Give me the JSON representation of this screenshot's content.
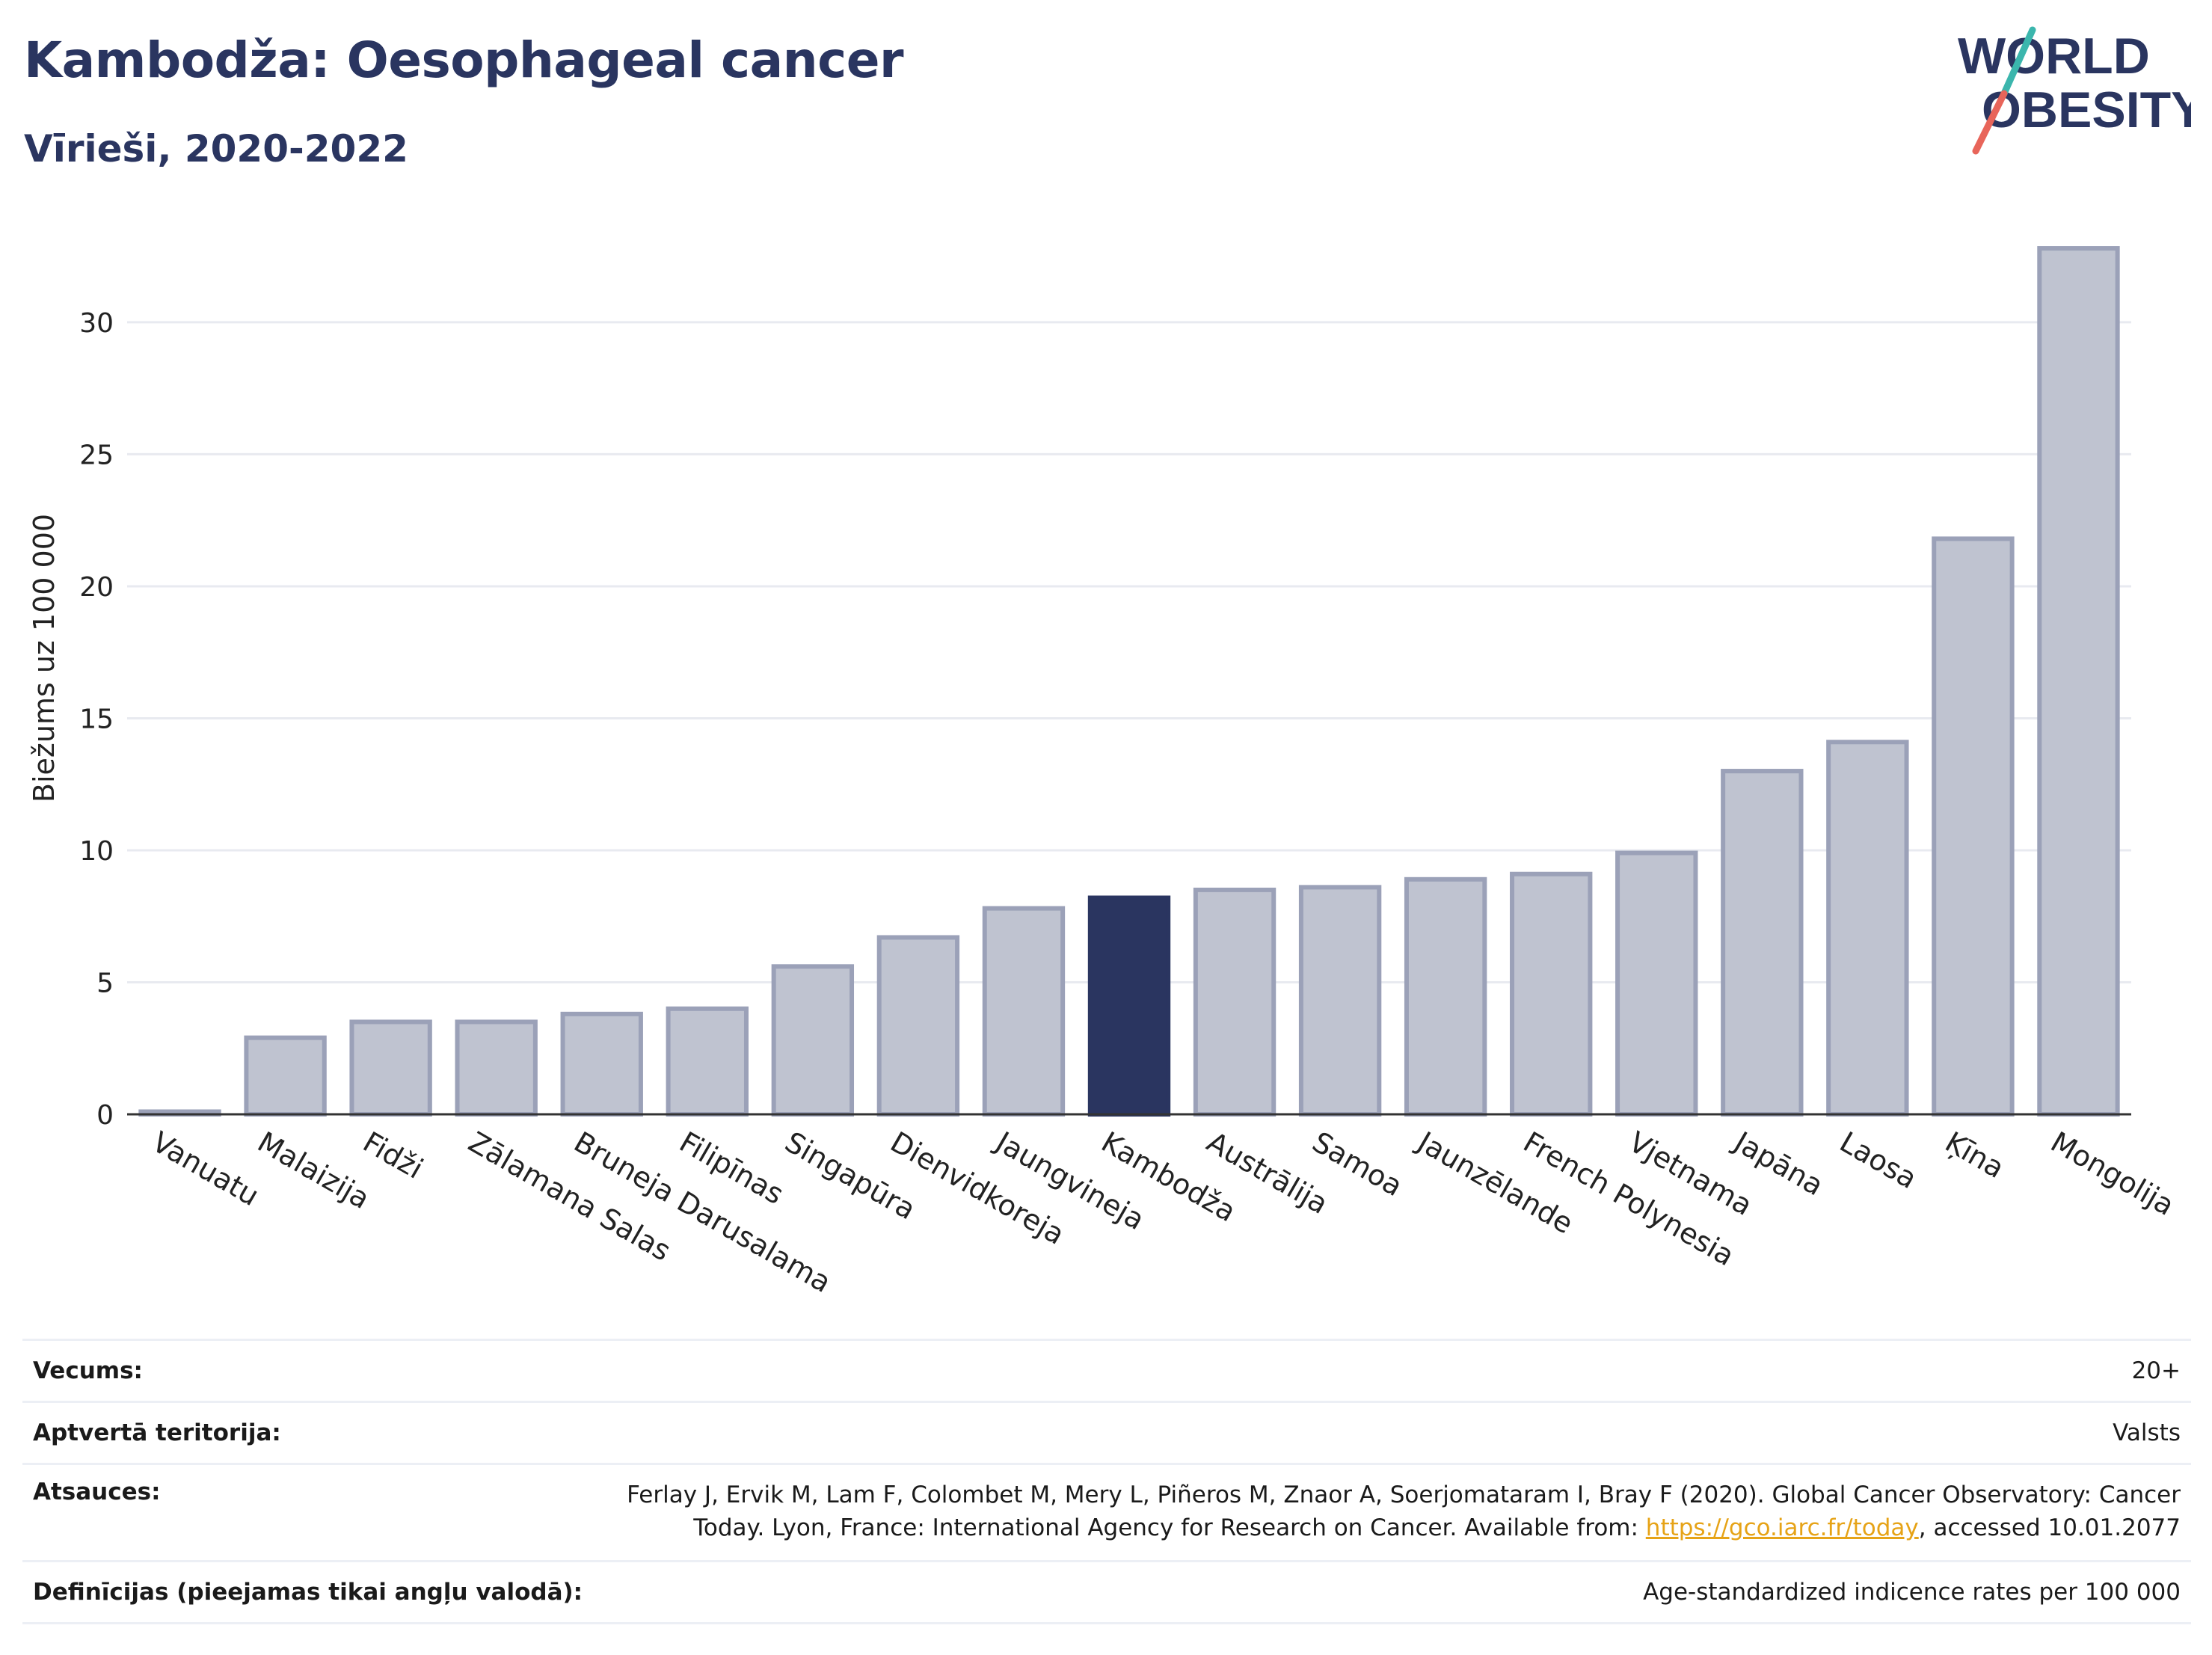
{
  "header": {
    "title": "Kambodža: Oesophageal cancer",
    "subtitle": "Vīrieši, 2020-2022"
  },
  "logo": {
    "line1": "WORLD",
    "line2": "OBESITY"
  },
  "chart_data": {
    "type": "bar",
    "ylabel": "Biežums uz 100 000",
    "ylim": [
      0,
      33
    ],
    "yticks": [
      0,
      5,
      10,
      15,
      20,
      25,
      30
    ],
    "grid": true,
    "highlight": "Kambodža",
    "categories": [
      "Vanuatu",
      "Malaizija",
      "Fidži",
      "Zālamana Salas",
      "Bruneja Darusalama",
      "Filipīnas",
      "Singapūra",
      "Dienvidkoreja",
      "Jaungvineja",
      "Kambodža",
      "Austrālija",
      "Samoa",
      "Jaunzēlande",
      "French Polynesia",
      "Vjetnama",
      "Japāna",
      "Laosa",
      "Ķīna",
      "Mongolija"
    ],
    "values": [
      0.1,
      2.9,
      3.5,
      3.5,
      3.8,
      4.0,
      5.6,
      6.7,
      7.8,
      8.2,
      8.5,
      8.6,
      8.9,
      9.1,
      9.9,
      13.0,
      14.1,
      21.8,
      32.8
    ],
    "colors": {
      "bar": "#bfc3d0",
      "bar_edge": "#9ba1b8",
      "highlight": "#2a3560",
      "grid": "#e8eaf0",
      "axis": "#333333"
    }
  },
  "info_table": {
    "rows": [
      {
        "label": "Vecums:",
        "value": "20+"
      },
      {
        "label": "Aptvertā teritorija:",
        "value": "Valsts"
      },
      {
        "label": "Atsauces:",
        "value_line1": "Ferlay J, Ervik M, Lam F, Colombet M, Mery L, Piñeros M, Znaor A, Soerjomataram I, Bray F (2020). Global Cancer Observatory: Cancer",
        "value_line2_pre": "Today. Lyon, France: International Agency for Research on Cancer. Available from: ",
        "link": "https://gco.iarc.fr/today",
        "value_line2_post": ", accessed 10.01.2077"
      },
      {
        "label": "Definīcijas (pieejamas tikai angļu valodā):",
        "value": "Age-standardized indicence rates per 100 000"
      }
    ]
  }
}
